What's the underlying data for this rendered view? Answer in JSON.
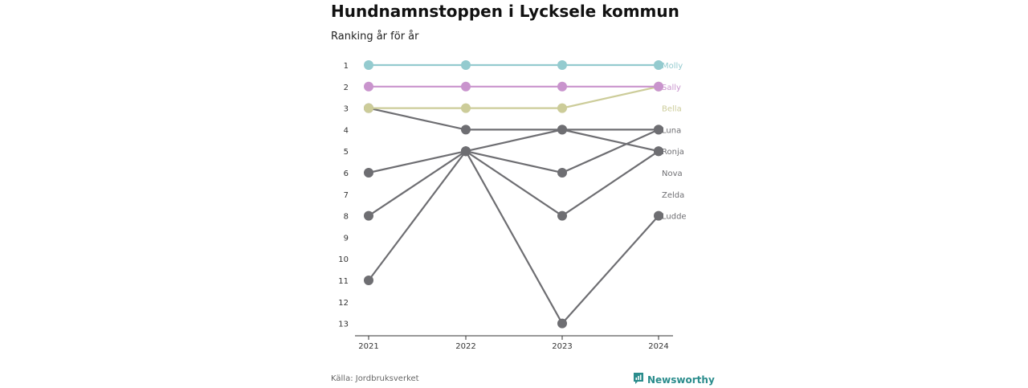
{
  "title": "Hundnamnstoppen i Lycksele kommun",
  "subtitle": "Ranking år för år",
  "source": "Källa: Jordbruksverket",
  "brand": {
    "name": "Newsworthy",
    "icon": "newsworthy-logo-icon"
  },
  "chart_data": {
    "type": "line",
    "title": "Hundnamnstoppen i Lycksele kommun",
    "subtitle": "Ranking år för år",
    "xlabel": "",
    "ylabel": "",
    "x": [
      "2021",
      "2022",
      "2023",
      "2024"
    ],
    "y_ticks": [
      "1",
      "2",
      "3",
      "4",
      "5",
      "6",
      "7",
      "8",
      "9",
      "10",
      "11",
      "12",
      "13"
    ],
    "ylim": [
      1,
      13
    ],
    "y_inverted": true,
    "grid": false,
    "series": [
      {
        "name": "Molly",
        "color": "#94cbcf",
        "values": [
          1,
          1,
          1,
          1
        ]
      },
      {
        "name": "Sally",
        "color": "#c994cd",
        "values": [
          2,
          2,
          2,
          2
        ]
      },
      {
        "name": "Bella",
        "color": "#cccc99",
        "values": [
          3,
          3,
          3,
          2
        ]
      },
      {
        "name": "Luna",
        "color": "#6e6e72",
        "values": [
          3,
          4,
          4,
          5
        ]
      },
      {
        "name": "Ronja",
        "color": "#6e6e72",
        "values": [
          6,
          5,
          4,
          4
        ]
      },
      {
        "name": "Nova",
        "color": "#6e6e72",
        "values": [
          8,
          5,
          6,
          4
        ]
      },
      {
        "name": "Zelda",
        "color": "#6e6e72",
        "values": [
          11,
          5,
          8,
          5
        ]
      },
      {
        "name": "Ludde",
        "color": "#6e6e72",
        "values": [
          null,
          5,
          13,
          8
        ]
      }
    ],
    "end_labels": [
      {
        "name": "Molly",
        "rank": 1,
        "color": "#94cbcf"
      },
      {
        "name": "Sally",
        "rank": 2,
        "color": "#c994cd"
      },
      {
        "name": "Bella",
        "rank": 3,
        "color": "#cccc99"
      },
      {
        "name": "Luna",
        "rank": 4,
        "color": "#6e6e72"
      },
      {
        "name": "Ronja",
        "rank": 5,
        "color": "#6e6e72"
      },
      {
        "name": "Nova",
        "rank": 6,
        "color": "#6e6e72"
      },
      {
        "name": "Zelda",
        "rank": 7,
        "color": "#6e6e72"
      },
      {
        "name": "Ludde",
        "rank": 8,
        "color": "#6e6e72"
      }
    ]
  }
}
